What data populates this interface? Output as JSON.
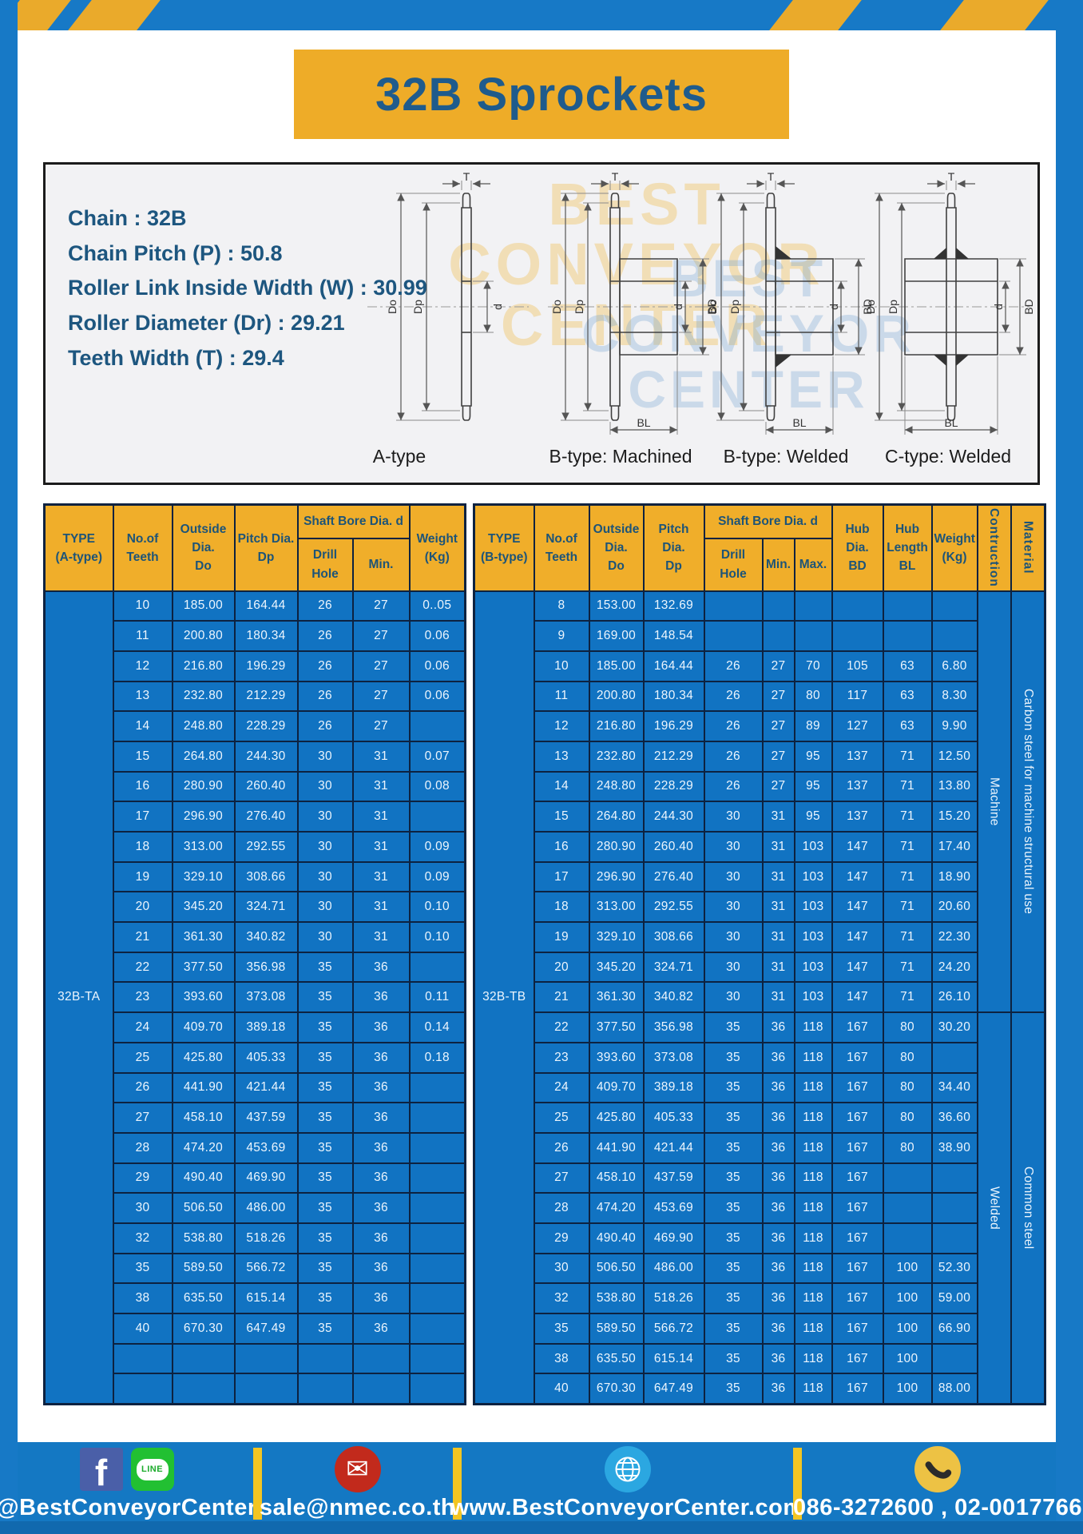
{
  "header": {
    "title": "32B Sprockets"
  },
  "specs": {
    "lines": [
      "Chain  : 32B",
      "Chain Pitch (P)  :  50.8",
      "Roller Link Inside Width (W)  :  30.99",
      "Roller Diameter (Dr)  : 29.21",
      "Teeth Width (T)  :  29.4"
    ]
  },
  "diagram": {
    "watermark": "BEST\nCONVEYOR\nCENTER",
    "captions": [
      "A-type",
      "B-type: Machined",
      "B-type: Welded",
      "C-type: Welded"
    ],
    "dims": {
      "t": "T",
      "do": "Do",
      "dp": "Dp",
      "d": "d",
      "bd": "BD",
      "bl": "BL"
    }
  },
  "tables": {
    "left": {
      "head": [
        [
          {
            "text": "TYPE\n(A-type)",
            "rowspan": 2
          },
          {
            "text": "No.of\nTeeth",
            "rowspan": 2
          },
          {
            "text": "Outside\nDia.\nDo",
            "rowspan": 2
          },
          {
            "text": "Pitch Dia.\nDp",
            "rowspan": 2
          },
          {
            "text": "Shaft Bore Dia. d",
            "colspan": 2
          },
          {
            "text": "Weight\n(Kg)",
            "rowspan": 2
          }
        ],
        [
          {
            "text": "Drill Hole"
          },
          {
            "text": "Min."
          }
        ]
      ],
      "merges": [
        {
          "row": 0,
          "where": "start",
          "rowspan": 27,
          "text": "32B-TA",
          "cls": "type-cell",
          "name": "type-label-32b-ta"
        }
      ],
      "rows": [
        [
          "10",
          "185.00",
          "164.44",
          "26",
          "27",
          "0..05"
        ],
        [
          "11",
          "200.80",
          "180.34",
          "26",
          "27",
          "0.06"
        ],
        [
          "12",
          "216.80",
          "196.29",
          "26",
          "27",
          "0.06"
        ],
        [
          "13",
          "232.80",
          "212.29",
          "26",
          "27",
          "0.06"
        ],
        [
          "14",
          "248.80",
          "228.29",
          "26",
          "27",
          ""
        ],
        [
          "15",
          "264.80",
          "244.30",
          "30",
          "31",
          "0.07"
        ],
        [
          "16",
          "280.90",
          "260.40",
          "30",
          "31",
          "0.08"
        ],
        [
          "17",
          "296.90",
          "276.40",
          "30",
          "31",
          ""
        ],
        [
          "18",
          "313.00",
          "292.55",
          "30",
          "31",
          "0.09"
        ],
        [
          "19",
          "329.10",
          "308.66",
          "30",
          "31",
          "0.09"
        ],
        [
          "20",
          "345.20",
          "324.71",
          "30",
          "31",
          "0.10"
        ],
        [
          "21",
          "361.30",
          "340.82",
          "30",
          "31",
          "0.10"
        ],
        [
          "22",
          "377.50",
          "356.98",
          "35",
          "36",
          ""
        ],
        [
          "23",
          "393.60",
          "373.08",
          "35",
          "36",
          "0.11"
        ],
        [
          "24",
          "409.70",
          "389.18",
          "35",
          "36",
          "0.14"
        ],
        [
          "25",
          "425.80",
          "405.33",
          "35",
          "36",
          "0.18"
        ],
        [
          "26",
          "441.90",
          "421.44",
          "35",
          "36",
          ""
        ],
        [
          "27",
          "458.10",
          "437.59",
          "35",
          "36",
          ""
        ],
        [
          "28",
          "474.20",
          "453.69",
          "35",
          "36",
          ""
        ],
        [
          "29",
          "490.40",
          "469.90",
          "35",
          "36",
          ""
        ],
        [
          "30",
          "506.50",
          "486.00",
          "35",
          "36",
          ""
        ],
        [
          "32",
          "538.80",
          "518.26",
          "35",
          "36",
          ""
        ],
        [
          "35",
          "589.50",
          "566.72",
          "35",
          "36",
          ""
        ],
        [
          "38",
          "635.50",
          "615.14",
          "35",
          "36",
          ""
        ],
        [
          "40",
          "670.30",
          "647.49",
          "35",
          "36",
          ""
        ],
        [
          "",
          "",
          "",
          "",
          "",
          ""
        ],
        [
          "",
          "",
          "",
          "",
          "",
          ""
        ]
      ]
    },
    "right": {
      "head": [
        [
          {
            "text": "TYPE\n(B-type)",
            "rowspan": 2
          },
          {
            "text": "No.of\nTeeth",
            "rowspan": 2
          },
          {
            "text": "Outside\nDia.\nDo",
            "rowspan": 2
          },
          {
            "text": "Pitch Dia.\nDp",
            "rowspan": 2
          },
          {
            "text": "Shaft Bore Dia. d",
            "colspan": 3
          },
          {
            "text": "Hub Dia.\nBD",
            "rowspan": 2
          },
          {
            "text": "Hub\nLength\nBL",
            "rowspan": 2
          },
          {
            "text": "Weight\n(Kg)",
            "rowspan": 2
          },
          {
            "text": "Contruction",
            "rowspan": 2,
            "cls": "vhead"
          },
          {
            "text": "Material",
            "rowspan": 2,
            "cls": "vhead"
          }
        ],
        [
          {
            "text": "Drill Hole"
          },
          {
            "text": "Min."
          },
          {
            "text": "Max."
          }
        ]
      ],
      "merges": [
        {
          "row": 0,
          "where": "start",
          "rowspan": 27,
          "text": "32B-TB",
          "cls": "type-cell",
          "name": "type-label-32b-tb"
        },
        {
          "row": 0,
          "where": "end",
          "rowspan": 14,
          "text": "Machine",
          "cls": "vcell",
          "name": "construction-machine"
        },
        {
          "row": 0,
          "where": "end",
          "rowspan": 14,
          "text": "Carbon steel for machine structural use",
          "cls": "vcell",
          "name": "material-carbon-steel"
        },
        {
          "row": 14,
          "where": "end",
          "rowspan": 13,
          "text": "Welded",
          "cls": "vcell",
          "name": "construction-welded"
        },
        {
          "row": 14,
          "where": "end",
          "rowspan": 13,
          "text": "Common steel",
          "cls": "vcell",
          "name": "material-common-steel"
        }
      ],
      "rows": [
        [
          "8",
          "153.00",
          "132.69",
          "",
          "",
          "",
          "",
          "",
          ""
        ],
        [
          "9",
          "169.00",
          "148.54",
          "",
          "",
          "",
          "",
          "",
          ""
        ],
        [
          "10",
          "185.00",
          "164.44",
          "26",
          "27",
          "70",
          "105",
          "63",
          "6.80"
        ],
        [
          "11",
          "200.80",
          "180.34",
          "26",
          "27",
          "80",
          "117",
          "63",
          "8.30"
        ],
        [
          "12",
          "216.80",
          "196.29",
          "26",
          "27",
          "89",
          "127",
          "63",
          "9.90"
        ],
        [
          "13",
          "232.80",
          "212.29",
          "26",
          "27",
          "95",
          "137",
          "71",
          "12.50"
        ],
        [
          "14",
          "248.80",
          "228.29",
          "26",
          "27",
          "95",
          "137",
          "71",
          "13.80"
        ],
        [
          "15",
          "264.80",
          "244.30",
          "30",
          "31",
          "95",
          "137",
          "71",
          "15.20"
        ],
        [
          "16",
          "280.90",
          "260.40",
          "30",
          "31",
          "103",
          "147",
          "71",
          "17.40"
        ],
        [
          "17",
          "296.90",
          "276.40",
          "30",
          "31",
          "103",
          "147",
          "71",
          "18.90"
        ],
        [
          "18",
          "313.00",
          "292.55",
          "30",
          "31",
          "103",
          "147",
          "71",
          "20.60"
        ],
        [
          "19",
          "329.10",
          "308.66",
          "30",
          "31",
          "103",
          "147",
          "71",
          "22.30"
        ],
        [
          "20",
          "345.20",
          "324.71",
          "30",
          "31",
          "103",
          "147",
          "71",
          "24.20"
        ],
        [
          "21",
          "361.30",
          "340.82",
          "30",
          "31",
          "103",
          "147",
          "71",
          "26.10"
        ],
        [
          "22",
          "377.50",
          "356.98",
          "35",
          "36",
          "118",
          "167",
          "80",
          "30.20"
        ],
        [
          "23",
          "393.60",
          "373.08",
          "35",
          "36",
          "118",
          "167",
          "80",
          ""
        ],
        [
          "24",
          "409.70",
          "389.18",
          "35",
          "36",
          "118",
          "167",
          "80",
          "34.40"
        ],
        [
          "25",
          "425.80",
          "405.33",
          "35",
          "36",
          "118",
          "167",
          "80",
          "36.60"
        ],
        [
          "26",
          "441.90",
          "421.44",
          "35",
          "36",
          "118",
          "167",
          "80",
          "38.90"
        ],
        [
          "27",
          "458.10",
          "437.59",
          "35",
          "36",
          "118",
          "167",
          "",
          ""
        ],
        [
          "28",
          "474.20",
          "453.69",
          "35",
          "36",
          "118",
          "167",
          "",
          ""
        ],
        [
          "29",
          "490.40",
          "469.90",
          "35",
          "36",
          "118",
          "167",
          "",
          ""
        ],
        [
          "30",
          "506.50",
          "486.00",
          "35",
          "36",
          "118",
          "167",
          "100",
          "52.30"
        ],
        [
          "32",
          "538.80",
          "518.26",
          "35",
          "36",
          "118",
          "167",
          "100",
          "59.00"
        ],
        [
          "35",
          "589.50",
          "566.72",
          "35",
          "36",
          "118",
          "167",
          "100",
          "66.90"
        ],
        [
          "38",
          "635.50",
          "615.14",
          "35",
          "36",
          "118",
          "167",
          "100",
          ""
        ],
        [
          "40",
          "670.30",
          "647.49",
          "35",
          "36",
          "118",
          "167",
          "100",
          "88.00"
        ]
      ]
    }
  },
  "icons": {
    "facebook": "f",
    "line": "LINE",
    "email": "✉"
  },
  "footer": {
    "sections": [
      {
        "label": "@BestConveyorCenter"
      },
      {
        "label": "sale@nmec.co.th"
      },
      {
        "label": "www.BestConveyorCenter.com"
      },
      {
        "label": "086-3272600 , 02-0017766"
      }
    ]
  },
  "colors": {
    "frame_blue": "#1779c6",
    "cell_blue": "#1173c2",
    "header_yellow": "#f0ae2a",
    "accent_yellow": "#eeac28",
    "navy_text": "#1d5478",
    "border_navy": "#0d2240"
  }
}
